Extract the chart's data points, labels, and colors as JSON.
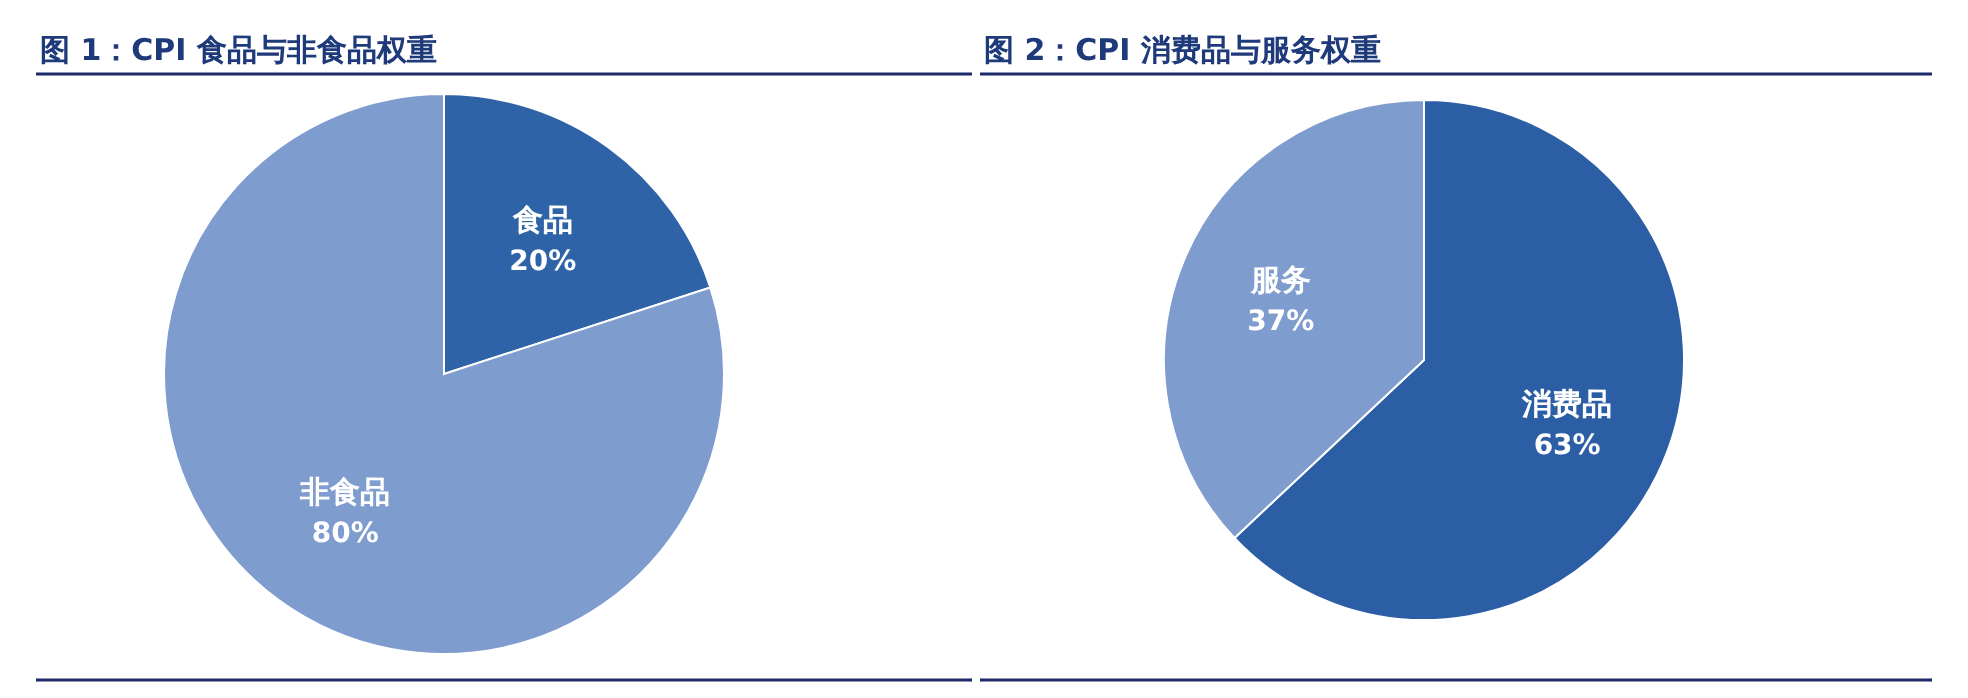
{
  "chart_data": [
    {
      "type": "pie",
      "title": "图 1：CPI 食品与非食品权重",
      "categories": [
        "食品",
        "非食品"
      ],
      "values": [
        20,
        80
      ],
      "value_labels": [
        "20%",
        "80%"
      ],
      "colors": [
        "#2f63a8",
        "#7f9ccf"
      ]
    },
    {
      "type": "pie",
      "title": "图 2：CPI 消费品与服务权重",
      "categories": [
        "消费品",
        "服务"
      ],
      "values": [
        63,
        37
      ],
      "value_labels": [
        "63%",
        "37%"
      ],
      "colors": [
        "#2c5ea6",
        "#7f9ccf"
      ]
    }
  ]
}
